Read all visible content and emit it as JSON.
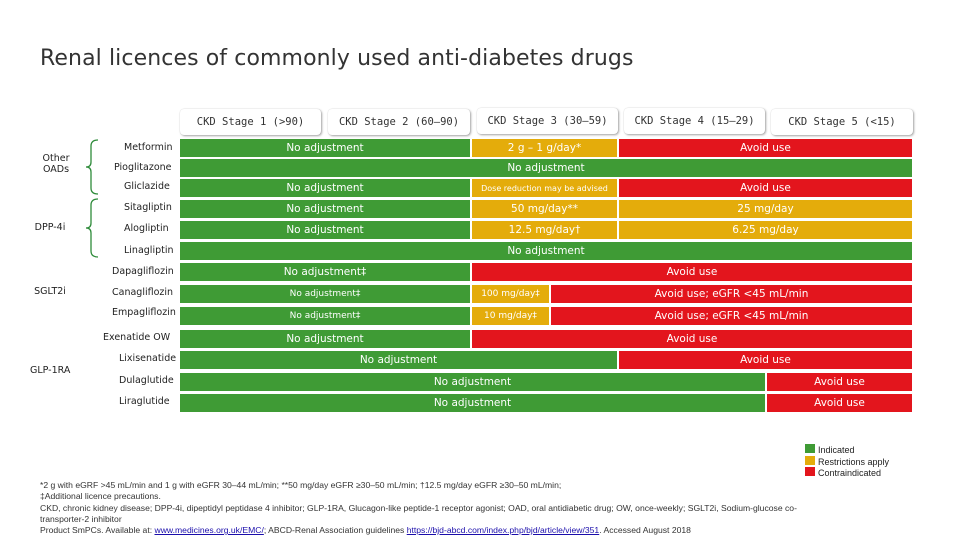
{
  "title": "Renal licences of commonly used anti-diabetes drugs",
  "colors": {
    "indicated": "#3f9b35",
    "restrictions": "#e4ac0b",
    "contraindicated": "#e3151d"
  },
  "stages": [
    "CKD Stage 1 (>90)",
    "CKD Stage 2 (60–90)",
    "CKD Stage 3 (30–59)",
    "CKD Stage 4 (15–29)",
    "CKD Stage 5 (<15)"
  ],
  "classes": {
    "other": "Other OADs",
    "dpp4": "DPP-4i",
    "sglt2": "SGLT2i",
    "glp1": "GLP-1RA"
  },
  "drugs": {
    "metformin": {
      "name": "Metformin",
      "b1": "No adjustment",
      "b2": "2 g – 1 g/day*",
      "b3": "Avoid use"
    },
    "pioglitazone": {
      "name": "Pioglitazone",
      "b1": "No adjustment"
    },
    "gliclazide": {
      "name": "Gliclazide",
      "b1": "No adjustment",
      "b2": "Dose reduction may be advised",
      "b3": "Avoid use"
    },
    "sitagliptin": {
      "name": "Sitagliptin",
      "b1": "No adjustment",
      "b2": "50 mg/day**",
      "b3": "25 mg/day"
    },
    "alogliptin": {
      "name": "Alogliptin",
      "b1": "No adjustment",
      "b2": "12.5 mg/day†",
      "b3": "6.25 mg/day"
    },
    "linagliptin": {
      "name": "Linagliptin",
      "b1": "No adjustment"
    },
    "dapagliflozin": {
      "name": "Dapagliflozin",
      "b1": "No adjustment‡",
      "b2": "Avoid use"
    },
    "canagliflozin": {
      "name": "Canagliflozin",
      "b1": "No adjustment‡",
      "b2": "100 mg/day‡",
      "b3": "Avoid use; eGFR <45 mL/min"
    },
    "empagliflozin": {
      "name": "Empagliflozin",
      "b1": "No adjustment‡",
      "b2": "10 mg/day‡",
      "b3": "Avoid use; eGFR <45 mL/min"
    },
    "exenatide_ow": {
      "name": "Exenatide OW",
      "b1": "No adjustment",
      "b2": "Avoid use"
    },
    "lixisenatide": {
      "name": "Lixisenatide",
      "b1": "No adjustment",
      "b2": "Avoid use"
    },
    "dulaglutide": {
      "name": "Dulaglutide",
      "b1": "No adjustment",
      "b2": "Avoid use"
    },
    "liraglutide": {
      "name": "Liraglutide",
      "b1": "No adjustment",
      "b2": "Avoid use"
    }
  },
  "legend": {
    "indicated": "Indicated",
    "restrictions": "Restrictions apply",
    "contraindicated": "Contraindicated"
  },
  "footnotes": {
    "line1": "*2 g with eGRF >45 mL/min and 1 g with eGFR 30–44 mL/min; **50 mg/day eGFR ≥30–50 mL/min; †12.5 mg/day eGFR ≥30–50 mL/min;",
    "line2": "‡Additional licence precautions.",
    "line3": "CKD, chronic kidney disease; DPP-4i, dipeptidyl peptidase 4 inhibitor; GLP-1RA, Glucagon-like peptide-1 receptor agonist; OAD, oral antidiabetic drug; OW, once-weekly; SGLT2i, Sodium-glucose co-",
    "line4": "transporter-2 inhibitor",
    "src_prefix": "Product SmPCs. Available at: ",
    "link1": "www.medicines.org.uk/EMC/",
    "src_mid": "; ABCD-Renal Association guidelines ",
    "link2": "https://bjd-abcd.com/index.php/bjd/article/view/351",
    "src_suffix": ". Accessed August 2018"
  }
}
